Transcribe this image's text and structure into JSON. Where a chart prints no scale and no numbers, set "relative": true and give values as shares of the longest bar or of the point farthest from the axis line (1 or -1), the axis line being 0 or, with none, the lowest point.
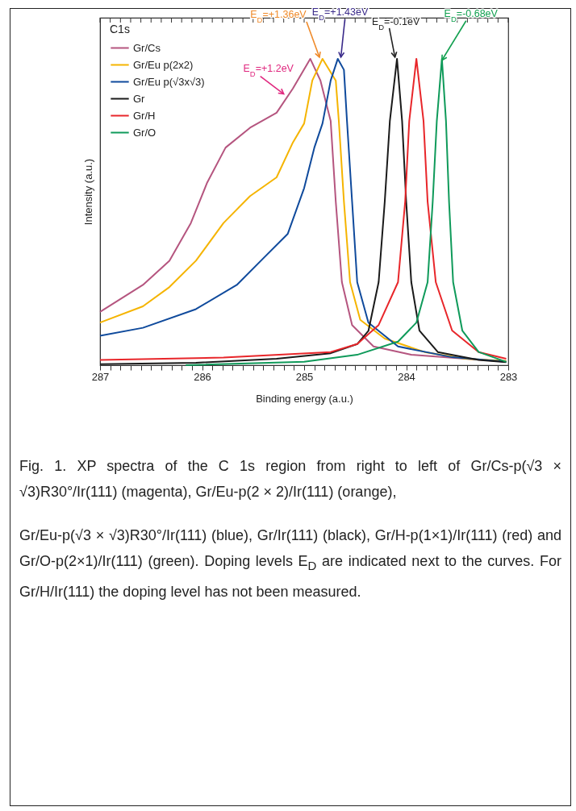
{
  "chart_data": {
    "type": "line",
    "relative": true,
    "xlabel": "Binding energy (a.u.)",
    "ylabel": "Intensity (a.u.)",
    "legend_title": "C1s",
    "legend": "top left",
    "xlim": [
      287,
      283
    ],
    "xticks": [
      287,
      {
        "value": 286.9,
        "label": null
      },
      {
        "value": 286.8,
        "label": null
      },
      {
        "value": 286.7,
        "label": null
      },
      {
        "value": 286.6,
        "label": null
      },
      {
        "value": 286.5,
        "label": null
      },
      {
        "value": 286.4,
        "label": null
      },
      {
        "value": 286.3,
        "label": null
      },
      {
        "value": 286.2,
        "label": null
      },
      {
        "value": 286.1,
        "label": null
      },
      286,
      {
        "value": 285.9,
        "label": null
      },
      {
        "value": 285.8,
        "label": null
      },
      {
        "value": 285.7,
        "label": null
      },
      {
        "value": 285.6,
        "label": null
      },
      {
        "value": 285.5,
        "label": null
      },
      {
        "value": 285.4,
        "label": null
      },
      {
        "value": 285.3,
        "label": null
      },
      {
        "value": 285.2,
        "label": null
      },
      {
        "value": 285.1,
        "label": null
      },
      285,
      {
        "value": 284.9,
        "label": null
      },
      {
        "value": 284.8,
        "label": null
      },
      {
        "value": 284.7,
        "label": null
      },
      {
        "value": 284.6,
        "label": null
      },
      {
        "value": 284.5,
        "label": null
      },
      {
        "value": 284.4,
        "label": null
      },
      {
        "value": 284.3,
        "label": null
      },
      {
        "value": 284.2,
        "label": null
      },
      {
        "value": 284.1,
        "label": null
      },
      284,
      {
        "value": 283.9,
        "label": null
      },
      {
        "value": 283.8,
        "label": null
      },
      {
        "value": 283.7,
        "label": null
      },
      {
        "value": 283.6,
        "label": null
      },
      {
        "value": 283.5,
        "label": null
      },
      {
        "value": 283.4,
        "label": null
      },
      {
        "value": 283.3,
        "label": null
      },
      {
        "value": 283.2,
        "label": null
      },
      {
        "value": 283.1,
        "label": null
      },
      283
    ],
    "series": [
      {
        "name": "Gr/Cs",
        "color": "#b5557f",
        "x": [
          287,
          286.58,
          286.32,
          286.11,
          285.95,
          285.77,
          285.53,
          285.27,
          285.11,
          284.94,
          284.84,
          284.74,
          284.69,
          284.63,
          284.53,
          284.32,
          283.95,
          283.42,
          283.02
        ],
        "values": [
          0.174,
          0.262,
          0.341,
          0.464,
          0.596,
          0.71,
          0.775,
          0.824,
          0.903,
          1,
          0.929,
          0.797,
          0.534,
          0.271,
          0.131,
          0.061,
          0.034,
          0.021,
          0.012
        ]
      },
      {
        "name": "Gr/Eu p(2x2)",
        "color": "#f5b400",
        "x": [
          287,
          286.58,
          286.32,
          286.06,
          285.79,
          285.53,
          285.27,
          285.11,
          285,
          284.92,
          284.82,
          284.69,
          284.66,
          284.61,
          284.55,
          284.45,
          284.21,
          283.82,
          283.42,
          283.02
        ],
        "values": [
          0.139,
          0.192,
          0.255,
          0.341,
          0.464,
          0.552,
          0.613,
          0.727,
          0.789,
          0.929,
          1,
          0.929,
          0.797,
          0.534,
          0.271,
          0.148,
          0.087,
          0.043,
          0.021,
          0.014
        ]
      },
      {
        "name": "Gr/Eu p(√3x√3)",
        "color": "#0f4a9c",
        "x": [
          287,
          286.58,
          286.06,
          285.66,
          285.4,
          285.16,
          285,
          284.9,
          284.82,
          284.74,
          284.67,
          284.61,
          284.58,
          284.53,
          284.48,
          284.37,
          284.08,
          283.55,
          283.02
        ],
        "values": [
          0.096,
          0.122,
          0.183,
          0.262,
          0.349,
          0.429,
          0.578,
          0.71,
          0.789,
          0.929,
          1,
          0.964,
          0.797,
          0.534,
          0.271,
          0.139,
          0.061,
          0.026,
          0.011
        ]
      },
      {
        "name": "Gr",
        "color": "#1a1a1a",
        "x": [
          287,
          286.06,
          285.27,
          284.74,
          284.48,
          284.37,
          284.27,
          284.21,
          284.16,
          284.09,
          284.04,
          284,
          283.95,
          283.87,
          283.69,
          283.29,
          283.02
        ],
        "values": [
          0.003,
          0.008,
          0.021,
          0.039,
          0.069,
          0.112,
          0.271,
          0.534,
          0.797,
          1,
          0.797,
          0.534,
          0.271,
          0.113,
          0.043,
          0.017,
          0.01
        ]
      },
      {
        "name": "Gr/H",
        "color": "#e8262a",
        "x": [
          287,
          285.79,
          284.74,
          284.48,
          284.27,
          284.08,
          284.01,
          283.97,
          283.9,
          283.83,
          283.79,
          283.71,
          283.55,
          283.29,
          283.02
        ],
        "values": [
          0.017,
          0.025,
          0.043,
          0.069,
          0.131,
          0.271,
          0.534,
          0.797,
          1,
          0.797,
          0.534,
          0.271,
          0.113,
          0.043,
          0.021
        ]
      },
      {
        "name": "Gr/O",
        "color": "#0f9a5a",
        "x": [
          286.16,
          285,
          284.48,
          284.08,
          283.9,
          283.79,
          283.74,
          283.7,
          283.65,
          283.61,
          283.58,
          283.54,
          283.45,
          283.29,
          283.02
        ],
        "values": [
          0,
          0.011,
          0.034,
          0.077,
          0.139,
          0.271,
          0.534,
          0.797,
          1,
          0.797,
          0.534,
          0.271,
          0.113,
          0.043,
          0.011
        ]
      }
    ],
    "annotations": [
      {
        "text": "E$_{D}$=+1.2eV",
        "x": 285.2,
        "y": 0.88
      },
      {
        "text": "E$_{D}$=+1.36eV",
        "x": 284.85,
        "y": 1
      },
      {
        "text": "E$_{D}$=+1.43eV",
        "x": 284.64,
        "y": 1
      },
      {
        "text": "E$_{D}$=-0.1eV",
        "x": 284.11,
        "y": 1
      },
      {
        "text": "E$_{D}$=-0.68eV",
        "x": 283.65,
        "y": 0.99
      },
      "Fig. 1. XP spectra of the C 1s region from right to left of Gr/Cs-p(√3 × √3)R30°/Ir(111) (magenta), Gr/Eu-p(2 × 2)/Ir(111) (orange),",
      "Gr/Eu-p(√3 × √3)R30°/Ir(111) (blue), Gr/Ir(111) (black), Gr/H-p(1×1)/Ir(111) (red) and Gr/O-p(2×1)/Ir(111) (green). Doping levels E$_{D}$ are indicated next to the curves. For Gr/H/Ir(111) the doping level has not been measured."
    ]
  }
}
